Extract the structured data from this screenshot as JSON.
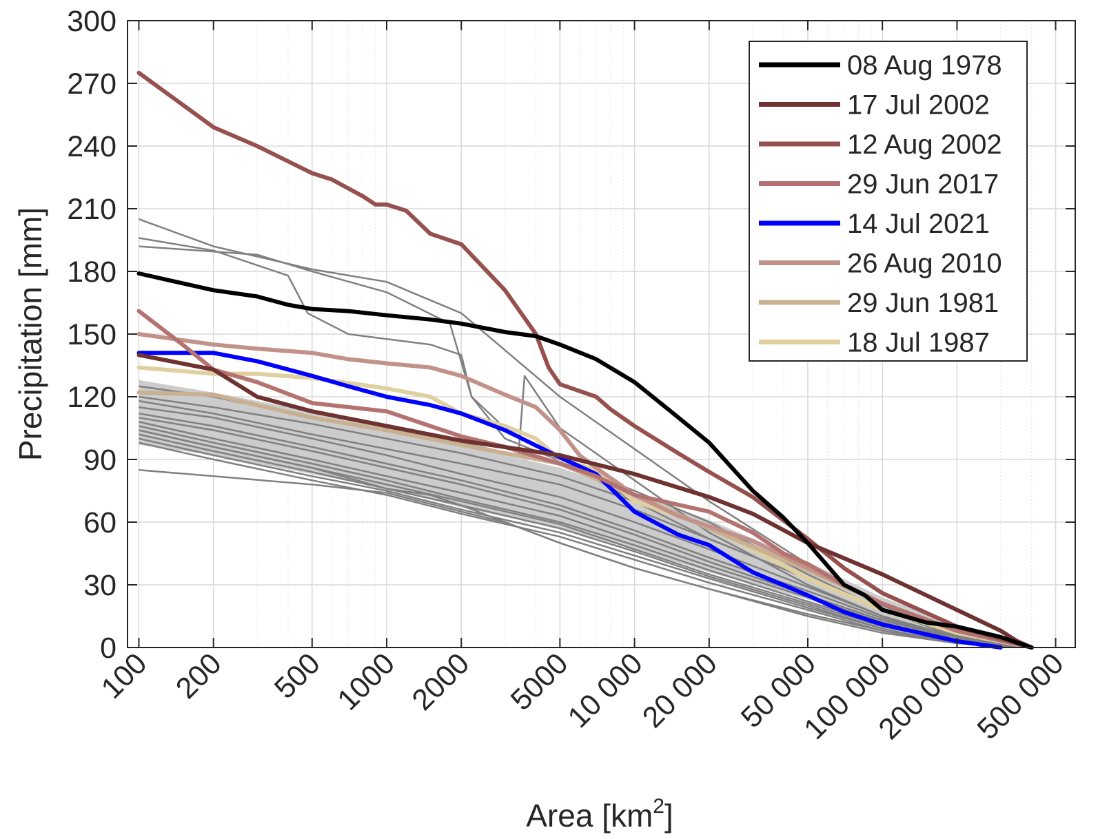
{
  "chart_data": {
    "type": "line",
    "xlabel": "Area [km",
    "xlabel_sup": "2",
    "xlabel_end": "]",
    "ylabel": "Precipitation [mm]",
    "x_scale": "log",
    "xlim": [
      90,
      600000
    ],
    "ylim": [
      0,
      300
    ],
    "grid": true,
    "legend_position": "top-right",
    "x_ticks": [
      {
        "value": 100,
        "label": "100"
      },
      {
        "value": 200,
        "label": "200"
      },
      {
        "value": 500,
        "label": "500"
      },
      {
        "value": 1000,
        "label": "1000"
      },
      {
        "value": 2000,
        "label": "2000"
      },
      {
        "value": 5000,
        "label": "5000"
      },
      {
        "value": 10000,
        "label": "10 000"
      },
      {
        "value": 20000,
        "label": "20 000"
      },
      {
        "value": 50000,
        "label": "50 000"
      },
      {
        "value": 100000,
        "label": "100 000"
      },
      {
        "value": 200000,
        "label": "200 000"
      },
      {
        "value": 500000,
        "label": "500 000"
      }
    ],
    "y_ticks": [
      0,
      30,
      60,
      90,
      120,
      150,
      180,
      210,
      240,
      270,
      300
    ],
    "envelope": {
      "color": "#cccccc",
      "x": [
        100,
        200,
        500,
        1000,
        2000,
        5000,
        10000,
        20000,
        50000,
        100000,
        200000,
        400000
      ],
      "upper": [
        128,
        122,
        113,
        105,
        97,
        86,
        74,
        61,
        41,
        24,
        11,
        0
      ],
      "lower": [
        97,
        92,
        83,
        76,
        67,
        57,
        47,
        36,
        23,
        12,
        4,
        0
      ]
    },
    "background_series": [
      {
        "color": "#808080",
        "x": [
          100,
          200,
          500,
          1000,
          2000,
          5000,
          10000,
          20000,
          50000,
          100000,
          200000,
          400000
        ],
        "values": [
          205,
          192,
          181,
          175,
          160,
          120,
          95,
          70,
          40,
          20,
          6,
          0
        ]
      },
      {
        "color": "#808080",
        "x": [
          100,
          200,
          400,
          480,
          700,
          1500,
          2000,
          2200,
          3000,
          5000,
          10000,
          20000,
          50000,
          100000,
          200000,
          400000
        ],
        "values": [
          196,
          190,
          178,
          160,
          150,
          145,
          140,
          120,
          105,
          90,
          70,
          52,
          33,
          18,
          5,
          0
        ]
      },
      {
        "color": "#808080",
        "x": [
          100,
          300,
          500,
          1000,
          1800,
          2200,
          3000,
          10000,
          20000,
          50000,
          100000,
          200000,
          400000
        ],
        "values": [
          192,
          188,
          180,
          170,
          155,
          120,
          100,
          75,
          60,
          35,
          18,
          5,
          0
        ]
      },
      {
        "color": "#808080",
        "x": [
          100,
          200,
          500,
          1000,
          2000,
          3400,
          3600,
          5000,
          10000,
          20000,
          50000,
          100000,
          200000,
          400000
        ],
        "values": [
          125,
          120,
          110,
          104,
          98,
          92,
          130,
          105,
          80,
          55,
          30,
          15,
          4,
          0
        ]
      },
      {
        "color": "#808080",
        "x": [
          100,
          200,
          500,
          1000,
          2000,
          5000,
          10000,
          20000,
          50000,
          100000,
          200000,
          400000
        ],
        "values": [
          120,
          115,
          107,
          100,
          93,
          82,
          70,
          57,
          37,
          21,
          8,
          0
        ]
      },
      {
        "color": "#808080",
        "x": [
          100,
          200,
          500,
          1000,
          2000,
          5000,
          10000,
          20000,
          50000,
          100000,
          200000,
          400000
        ],
        "values": [
          118,
          112,
          102,
          95,
          88,
          78,
          66,
          52,
          33,
          18,
          6,
          0
        ]
      },
      {
        "color": "#808080",
        "x": [
          100,
          200,
          500,
          1000,
          2000,
          5000,
          10000,
          20000,
          50000,
          100000,
          200000,
          400000
        ],
        "values": [
          115,
          110,
          100,
          92,
          83,
          72,
          60,
          47,
          29,
          15,
          5,
          0
        ]
      },
      {
        "color": "#808080",
        "x": [
          100,
          200,
          500,
          1000,
          2000,
          5000,
          10000,
          20000,
          50000,
          100000,
          200000,
          400000
        ],
        "values": [
          112,
          106,
          96,
          88,
          80,
          68,
          56,
          43,
          27,
          14,
          4,
          0
        ]
      },
      {
        "color": "#808080",
        "x": [
          100,
          200,
          500,
          1000,
          2000,
          5000,
          10000,
          20000,
          50000,
          100000,
          200000,
          400000
        ],
        "values": [
          110,
          104,
          94,
          86,
          78,
          66,
          54,
          41,
          25,
          13,
          4,
          0
        ]
      },
      {
        "color": "#808080",
        "x": [
          100,
          200,
          500,
          1000,
          2000,
          5000,
          10000,
          20000,
          50000,
          100000,
          200000,
          400000
        ],
        "values": [
          108,
          100,
          90,
          82,
          74,
          63,
          51,
          39,
          24,
          12,
          3,
          0
        ]
      },
      {
        "color": "#808080",
        "x": [
          100,
          200,
          500,
          1000,
          2000,
          5000,
          10000,
          20000,
          50000,
          100000,
          200000,
          400000
        ],
        "values": [
          106,
          98,
          88,
          80,
          71,
          60,
          49,
          37,
          22,
          11,
          3,
          0
        ]
      },
      {
        "color": "#808080",
        "x": [
          100,
          200,
          500,
          1000,
          2000,
          5000,
          10000,
          20000,
          50000,
          100000,
          200000,
          400000
        ],
        "values": [
          104,
          96,
          86,
          78,
          70,
          59,
          47,
          35,
          21,
          10,
          3,
          0
        ]
      },
      {
        "color": "#808080",
        "x": [
          100,
          200,
          500,
          1000,
          2000,
          5000,
          10000,
          20000,
          50000,
          100000,
          200000,
          400000
        ],
        "values": [
          102,
          94,
          84,
          76,
          68,
          57,
          46,
          34,
          20,
          9,
          2,
          0
        ]
      },
      {
        "color": "#808080",
        "x": [
          100,
          200,
          500,
          1000,
          2000,
          5000,
          10000,
          20000,
          50000,
          100000,
          200000,
          400000
        ],
        "values": [
          100,
          92,
          82,
          75,
          66,
          55,
          44,
          33,
          19,
          9,
          2,
          0
        ]
      },
      {
        "color": "#808080",
        "x": [
          100,
          200,
          500,
          1000,
          2000,
          5000,
          10000,
          20000,
          50000,
          100000,
          200000,
          400000
        ],
        "values": [
          98,
          90,
          80,
          73,
          64,
          53,
          42,
          31,
          18,
          8,
          2,
          0
        ]
      },
      {
        "color": "#808080",
        "x": [
          100,
          200,
          500,
          1000,
          1500,
          2000,
          5000,
          10000,
          20000,
          50000,
          100000,
          200000,
          400000
        ],
        "values": [
          104,
          96,
          86,
          76,
          73,
          68,
          50,
          38,
          28,
          15,
          7,
          2,
          0
        ]
      },
      {
        "color": "#808080",
        "x": [
          100,
          200,
          500,
          1000,
          2000,
          3000,
          5000,
          10000,
          20000,
          50000,
          100000,
          200000,
          400000
        ],
        "values": [
          85,
          82,
          78,
          74,
          65,
          60,
          50,
          38,
          28,
          16,
          8,
          2,
          0
        ]
      }
    ],
    "series": [
      {
        "name": "08 Aug 1978",
        "color": "#000000",
        "x": [
          100,
          200,
          300,
          400,
          500,
          700,
          1000,
          1500,
          2000,
          3000,
          4000,
          5000,
          7000,
          10000,
          14000,
          20000,
          30000,
          40000,
          50000,
          70000,
          85000,
          100000,
          150000,
          200000,
          300000,
          400000
        ],
        "values": [
          179,
          171,
          168,
          164,
          162,
          161,
          159,
          157,
          155,
          151,
          149,
          145,
          138,
          127,
          113,
          98,
          75,
          62,
          50,
          30,
          25,
          18,
          12,
          10,
          5,
          0
        ]
      },
      {
        "name": "17 Jul 2002",
        "color": "#6e3331",
        "x": [
          100,
          200,
          300,
          500,
          1000,
          2000,
          5000,
          10000,
          20000,
          30000,
          50000,
          100000,
          200000,
          300000,
          350000,
          400000
        ],
        "values": [
          140,
          133,
          120,
          113,
          106,
          99,
          92,
          83,
          72,
          64,
          50,
          35,
          18,
          8,
          3,
          0
        ]
      },
      {
        "name": "12 Aug 2002",
        "color": "#96514f",
        "x": [
          100,
          200,
          300,
          500,
          600,
          800,
          900,
          1000,
          1200,
          1500,
          2000,
          3000,
          4000,
          4500,
          5000,
          7000,
          8000,
          10000,
          15000,
          20000,
          30000,
          50000,
          70000,
          100000,
          200000,
          400000
        ],
        "values": [
          275,
          249,
          240,
          227,
          224,
          216,
          212,
          212,
          209,
          198,
          193,
          171,
          150,
          134,
          126,
          120,
          114,
          106,
          93,
          84,
          72,
          52,
          38,
          26,
          10,
          0
        ]
      },
      {
        "name": "29 Jun 2017",
        "color": "#b47371",
        "x": [
          100,
          150,
          200,
          300,
          500,
          1000,
          2000,
          3000,
          5000,
          7000,
          10000,
          20000,
          30000,
          40000,
          50000,
          70000,
          100000,
          200000,
          400000
        ],
        "values": [
          161,
          145,
          133,
          127,
          117,
          113,
          101,
          96,
          88,
          82,
          73,
          65,
          55,
          45,
          40,
          30,
          21,
          8,
          0
        ]
      },
      {
        "name": "14 Jul 2021",
        "color": "#0000ff",
        "x": [
          100,
          200,
          300,
          500,
          700,
          1000,
          1500,
          2000,
          3000,
          5000,
          7000,
          10000,
          15000,
          20000,
          30000,
          50000,
          70000,
          100000,
          200000,
          300000
        ],
        "values": [
          141,
          141,
          137,
          130,
          125,
          120,
          116,
          112,
          104,
          91,
          83,
          65,
          54,
          49,
          36,
          25,
          17,
          11,
          3,
          0
        ]
      },
      {
        "name": "26 Aug 2010",
        "color": "#c2928a",
        "x": [
          100,
          200,
          300,
          500,
          700,
          1000,
          1500,
          2000,
          3000,
          4000,
          5000,
          6000,
          7000,
          10000,
          15000,
          20000,
          30000,
          50000,
          100000,
          200000,
          400000
        ],
        "values": [
          150,
          145,
          143,
          141,
          138,
          136,
          134,
          130,
          121,
          115,
          104,
          92,
          86,
          73,
          63,
          58,
          51,
          38,
          21,
          8,
          0
        ]
      },
      {
        "name": "29 Jun 1981",
        "color": "#c8b090",
        "x": [
          100,
          200,
          300,
          500,
          1000,
          2000,
          5000,
          10000,
          20000,
          50000,
          100000,
          200000,
          400000
        ],
        "values": [
          122,
          121,
          116,
          110,
          104,
          97,
          88,
          73,
          57,
          37,
          21,
          8,
          0
        ]
      },
      {
        "name": "18 Jul 1987",
        "color": "#e0d0a0",
        "x": [
          100,
          200,
          300,
          500,
          1000,
          1500,
          2000,
          3000,
          4000,
          5000,
          7000,
          10000,
          20000,
          50000,
          100000,
          200000,
          400000
        ],
        "values": [
          134,
          131,
          131,
          129,
          124,
          120,
          112,
          106,
          100,
          90,
          85,
          70,
          58,
          33,
          18,
          7,
          0
        ]
      }
    ]
  }
}
